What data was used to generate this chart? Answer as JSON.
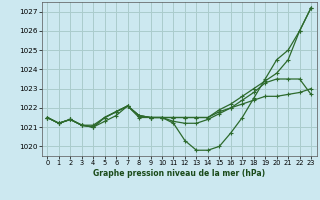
{
  "title": "Graphe pression niveau de la mer (hPa)",
  "bg_color": "#cce8f0",
  "grid_color": "#aacccc",
  "line_color": "#2d6a2d",
  "marker_color": "#2d6a2d",
  "ylim": [
    1019.5,
    1027.5
  ],
  "xlim": [
    -0.5,
    23.5
  ],
  "yticks": [
    1020,
    1021,
    1022,
    1023,
    1024,
    1025,
    1026,
    1027
  ],
  "xticks": [
    0,
    1,
    2,
    3,
    4,
    5,
    6,
    7,
    8,
    9,
    10,
    11,
    12,
    13,
    14,
    15,
    16,
    17,
    18,
    19,
    20,
    21,
    22,
    23
  ],
  "series": [
    [
      1021.5,
      1021.2,
      1021.4,
      1021.1,
      1021.1,
      1021.5,
      1021.8,
      1022.1,
      1021.5,
      1021.5,
      1021.5,
      1021.5,
      1021.5,
      1021.5,
      1021.5,
      1021.8,
      1022.0,
      1022.2,
      1022.4,
      1022.6,
      1022.6,
      1022.7,
      1022.8,
      1023.0
    ],
    [
      1021.5,
      1021.2,
      1021.4,
      1021.1,
      1021.0,
      1021.3,
      1021.6,
      1022.1,
      1021.6,
      1021.5,
      1021.5,
      1021.3,
      1021.2,
      1021.2,
      1021.4,
      1021.7,
      1022.0,
      1022.4,
      1022.8,
      1023.3,
      1023.5,
      1023.5,
      1023.5,
      1022.7
    ],
    [
      1021.5,
      1021.2,
      1021.4,
      1021.1,
      1021.0,
      1021.5,
      1021.8,
      1022.1,
      1021.6,
      1021.5,
      1021.5,
      1021.5,
      1021.5,
      1021.5,
      1021.5,
      1021.9,
      1022.2,
      1022.6,
      1023.0,
      1023.4,
      1023.8,
      1024.5,
      1026.0,
      1027.2
    ],
    [
      1021.5,
      1021.2,
      1021.4,
      1021.1,
      1021.0,
      1021.5,
      1021.8,
      1022.1,
      1021.6,
      1021.5,
      1021.5,
      1021.2,
      1020.3,
      1019.8,
      1019.8,
      1020.0,
      1020.7,
      1021.5,
      1022.5,
      1023.5,
      1024.5,
      1025.0,
      1026.0,
      1027.2
    ]
  ]
}
